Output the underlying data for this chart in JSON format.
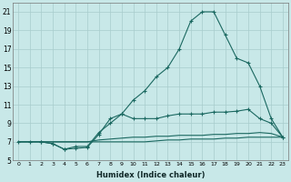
{
  "xlabel": "Humidex (Indice chaleur)",
  "bg_color": "#c8e8e8",
  "grid_color": "#a8cccc",
  "line_color": "#1a6860",
  "xlim_min": -0.5,
  "xlim_max": 23.5,
  "ylim_min": 5,
  "ylim_max": 22,
  "xtick_vals": [
    0,
    1,
    2,
    3,
    4,
    5,
    6,
    7,
    8,
    9,
    10,
    11,
    12,
    13,
    14,
    15,
    16,
    17,
    18,
    19,
    20,
    21,
    22,
    23
  ],
  "ytick_vals": [
    5,
    7,
    9,
    11,
    13,
    15,
    17,
    19,
    21
  ],
  "curve1_x": [
    0,
    1,
    2,
    3,
    4,
    5,
    6,
    7,
    8,
    9,
    10,
    11,
    12,
    13,
    14,
    15,
    16,
    17,
    18,
    19,
    20,
    21,
    22,
    23
  ],
  "curve1_y": [
    7.0,
    7.0,
    7.0,
    6.8,
    6.2,
    6.3,
    6.4,
    7.8,
    9.5,
    10.0,
    11.5,
    12.5,
    14.0,
    15.0,
    17.0,
    20.0,
    21.0,
    21.0,
    18.5,
    16.0,
    15.5,
    13.0,
    9.5,
    7.5
  ],
  "curve2_x": [
    2,
    3,
    4,
    5,
    6,
    7,
    8,
    9,
    10,
    11,
    12,
    13,
    14,
    15,
    16,
    17,
    18,
    19,
    20,
    21,
    22,
    23
  ],
  "curve2_y": [
    7.0,
    6.8,
    6.2,
    6.5,
    6.5,
    8.0,
    9.0,
    10.0,
    9.5,
    9.5,
    9.5,
    9.8,
    10.0,
    10.0,
    10.0,
    10.2,
    10.2,
    10.3,
    10.5,
    9.5,
    9.0,
    7.5
  ],
  "curve3_x": [
    0,
    1,
    2,
    3,
    4,
    5,
    6,
    7,
    8,
    9,
    10,
    11,
    12,
    13,
    14,
    15,
    16,
    17,
    18,
    19,
    20,
    21,
    22,
    23
  ],
  "curve3_y": [
    7.0,
    7.0,
    7.0,
    7.0,
    7.0,
    7.0,
    7.0,
    7.2,
    7.3,
    7.4,
    7.5,
    7.5,
    7.6,
    7.6,
    7.7,
    7.7,
    7.7,
    7.8,
    7.8,
    7.9,
    7.9,
    8.0,
    7.9,
    7.5
  ],
  "curve4_x": [
    0,
    1,
    2,
    3,
    4,
    5,
    6,
    7,
    8,
    9,
    10,
    11,
    12,
    13,
    14,
    15,
    16,
    17,
    18,
    19,
    20,
    21,
    22,
    23
  ],
  "curve4_y": [
    7.0,
    7.0,
    7.0,
    7.0,
    7.0,
    7.0,
    7.0,
    7.0,
    7.0,
    7.0,
    7.0,
    7.0,
    7.1,
    7.2,
    7.2,
    7.3,
    7.3,
    7.3,
    7.4,
    7.4,
    7.5,
    7.5,
    7.5,
    7.5
  ]
}
